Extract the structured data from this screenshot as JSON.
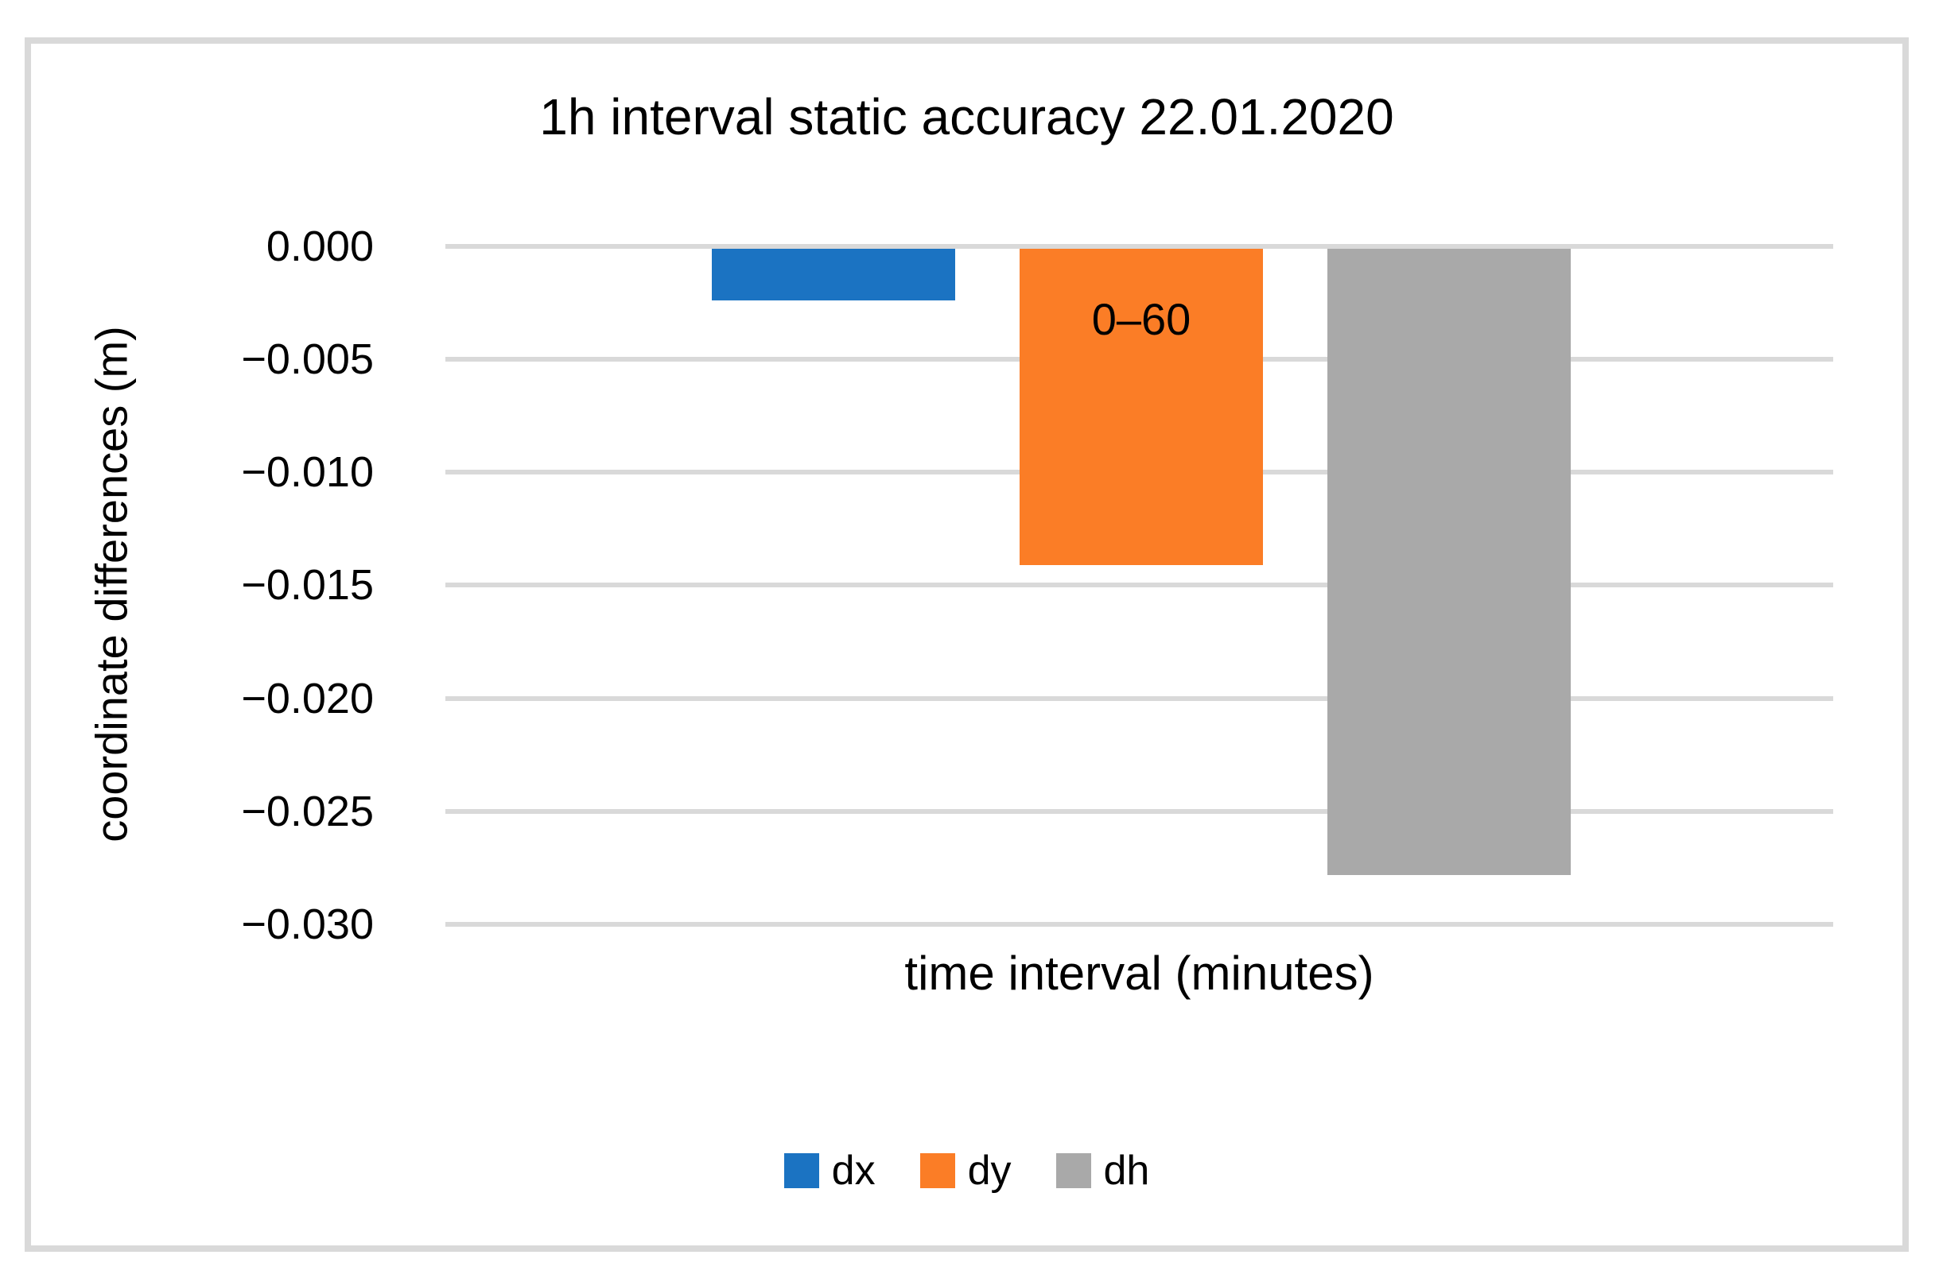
{
  "chart_data": {
    "type": "bar",
    "title": "1h interval static accuracy 22.01.2020",
    "xlabel": "time interval (minutes)",
    "ylabel": "coordinate differences (m)",
    "categories": [
      "0–60"
    ],
    "series": [
      {
        "name": "dx",
        "color": "#1B73C2",
        "values": [
          -0.0023
        ]
      },
      {
        "name": "dy",
        "color": "#FB7D26",
        "values": [
          -0.014
        ]
      },
      {
        "name": "dh",
        "color": "#A9A9A9",
        "values": [
          -0.0277
        ]
      }
    ],
    "bar_label": {
      "text": "0–60",
      "on_series": "dy"
    },
    "y_ticks": [
      "0.000",
      "−0.005",
      "−0.010",
      "−0.015",
      "−0.020",
      "−0.025",
      "−0.030"
    ],
    "y_tick_values": [
      0,
      -0.005,
      -0.01,
      -0.015,
      -0.02,
      -0.025,
      -0.03
    ],
    "ylim": [
      -0.03,
      0
    ],
    "grid": "horizontal",
    "legend_position": "bottom",
    "gridline_color": "#D9D9D9",
    "frame_border_color": "#D9D9D9",
    "text_color": "#000000"
  }
}
